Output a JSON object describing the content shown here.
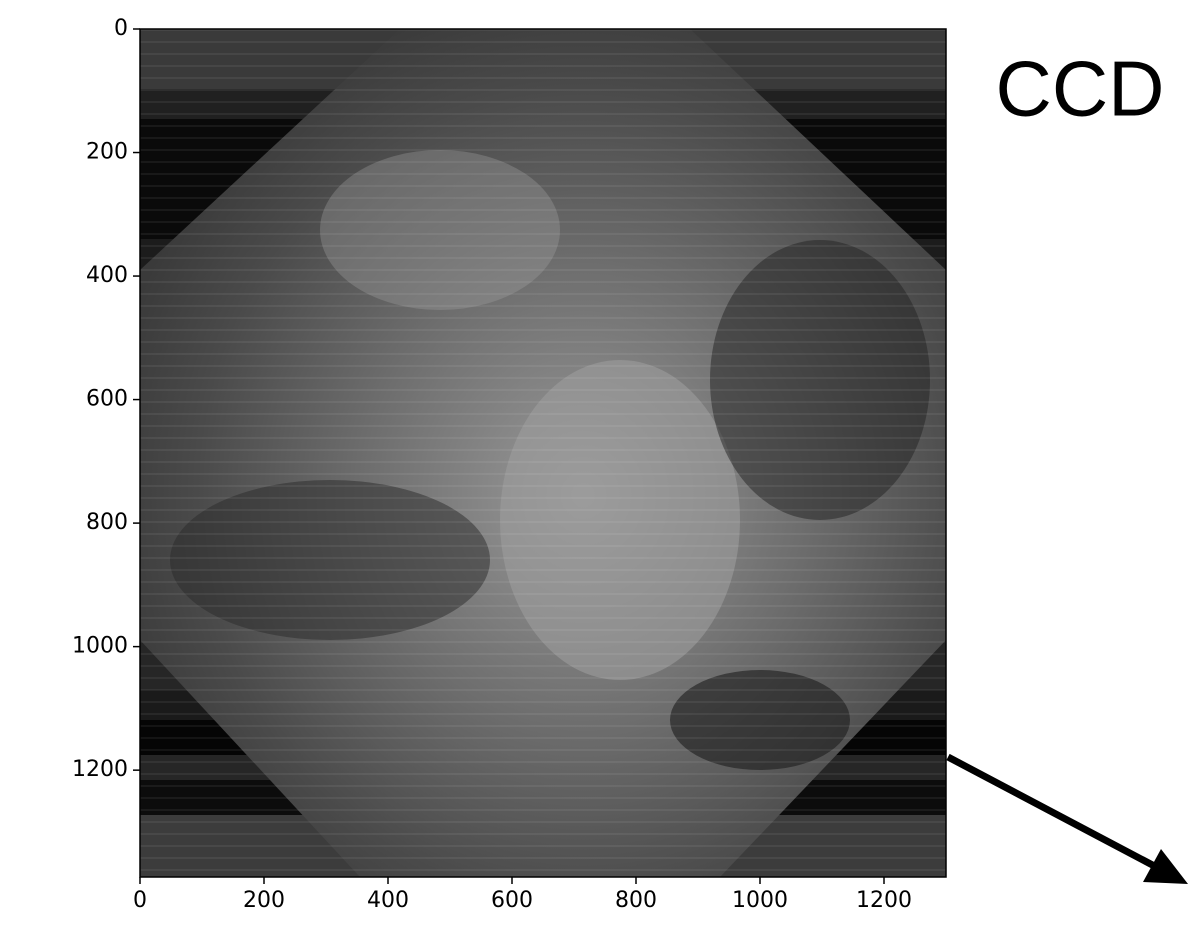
{
  "chart_data": {
    "type": "image",
    "annotation": "CCD",
    "xlim": [
      0,
      1300
    ],
    "ylim": [
      1373,
      0
    ],
    "xticks": [
      0,
      200,
      400,
      600,
      800,
      1000,
      1200
    ],
    "yticks": [
      0,
      200,
      400,
      600,
      800,
      1000,
      1200
    ]
  }
}
